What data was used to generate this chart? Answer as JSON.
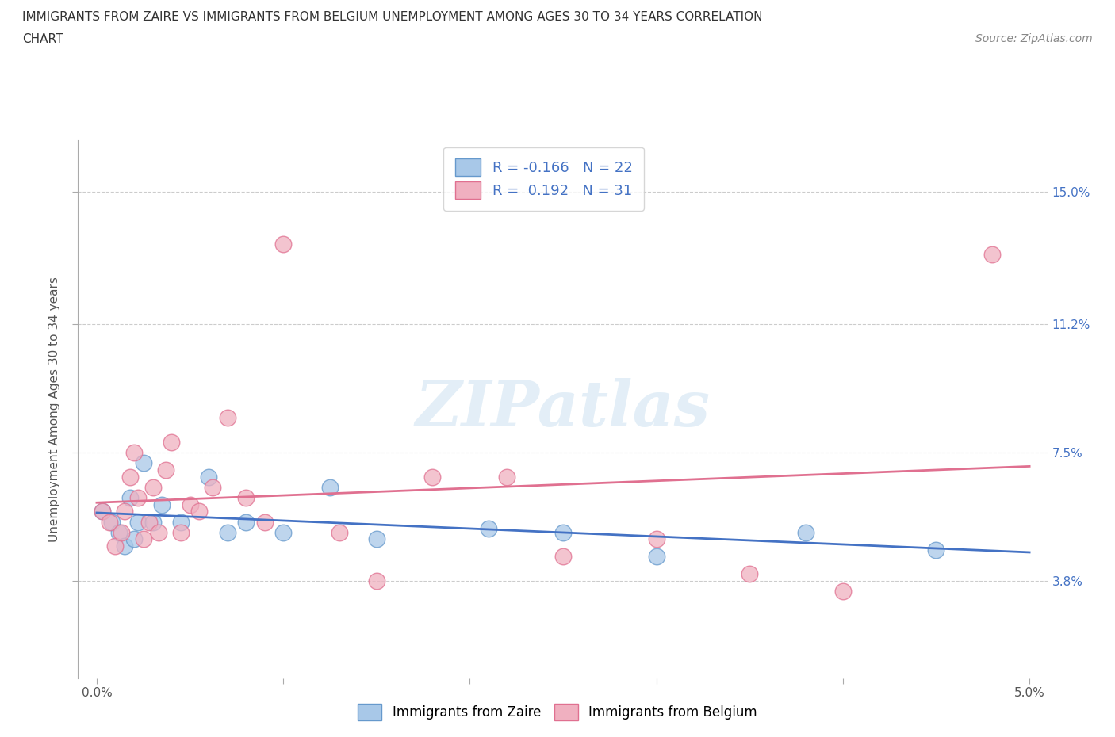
{
  "title_line1": "IMMIGRANTS FROM ZAIRE VS IMMIGRANTS FROM BELGIUM UNEMPLOYMENT AMONG AGES 30 TO 34 YEARS CORRELATION",
  "title_line2": "CHART",
  "source": "Source: ZipAtlas.com",
  "ylabel": "Unemployment Among Ages 30 to 34 years",
  "xlim": [
    -0.1,
    5.1
  ],
  "ylim": [
    1.0,
    16.5
  ],
  "xticks": [
    0.0,
    1.0,
    2.0,
    3.0,
    4.0,
    5.0
  ],
  "xticklabels": [
    "0.0%",
    "",
    "",
    "",
    "",
    "5.0%"
  ],
  "ytick_positions": [
    3.8,
    7.5,
    11.2,
    15.0
  ],
  "ytick_labels": [
    "3.8%",
    "7.5%",
    "11.2%",
    "15.0%"
  ],
  "zaire_color": "#a8c8e8",
  "zaire_edge_color": "#6699cc",
  "belgium_color": "#f0b0c0",
  "belgium_edge_color": "#e07090",
  "zaire_line_color": "#4472c4",
  "belgium_line_color": "#e07090",
  "zaire_R": -0.166,
  "zaire_N": 22,
  "belgium_R": 0.192,
  "belgium_N": 31,
  "legend_text_color": "#4472c4",
  "watermark": "ZIPatlas",
  "zaire_x": [
    0.03,
    0.08,
    0.12,
    0.15,
    0.18,
    0.2,
    0.22,
    0.25,
    0.3,
    0.35,
    0.45,
    0.6,
    0.7,
    0.8,
    1.0,
    1.25,
    1.5,
    2.1,
    2.5,
    3.0,
    3.8,
    4.5
  ],
  "zaire_y": [
    5.8,
    5.5,
    5.2,
    4.8,
    6.2,
    5.0,
    5.5,
    7.2,
    5.5,
    6.0,
    5.5,
    6.8,
    5.2,
    5.5,
    5.2,
    6.5,
    5.0,
    5.3,
    5.2,
    4.5,
    5.2,
    4.7
  ],
  "belgium_x": [
    0.03,
    0.07,
    0.1,
    0.13,
    0.15,
    0.18,
    0.2,
    0.22,
    0.25,
    0.28,
    0.3,
    0.33,
    0.37,
    0.4,
    0.45,
    0.5,
    0.55,
    0.62,
    0.7,
    0.8,
    0.9,
    1.0,
    1.3,
    1.5,
    1.8,
    2.2,
    2.5,
    3.0,
    3.5,
    4.0,
    4.8
  ],
  "belgium_y": [
    5.8,
    5.5,
    4.8,
    5.2,
    5.8,
    6.8,
    7.5,
    6.2,
    5.0,
    5.5,
    6.5,
    5.2,
    7.0,
    7.8,
    5.2,
    6.0,
    5.8,
    6.5,
    8.5,
    6.2,
    5.5,
    13.5,
    5.2,
    3.8,
    6.8,
    6.8,
    4.5,
    5.0,
    4.0,
    3.5,
    13.2
  ]
}
